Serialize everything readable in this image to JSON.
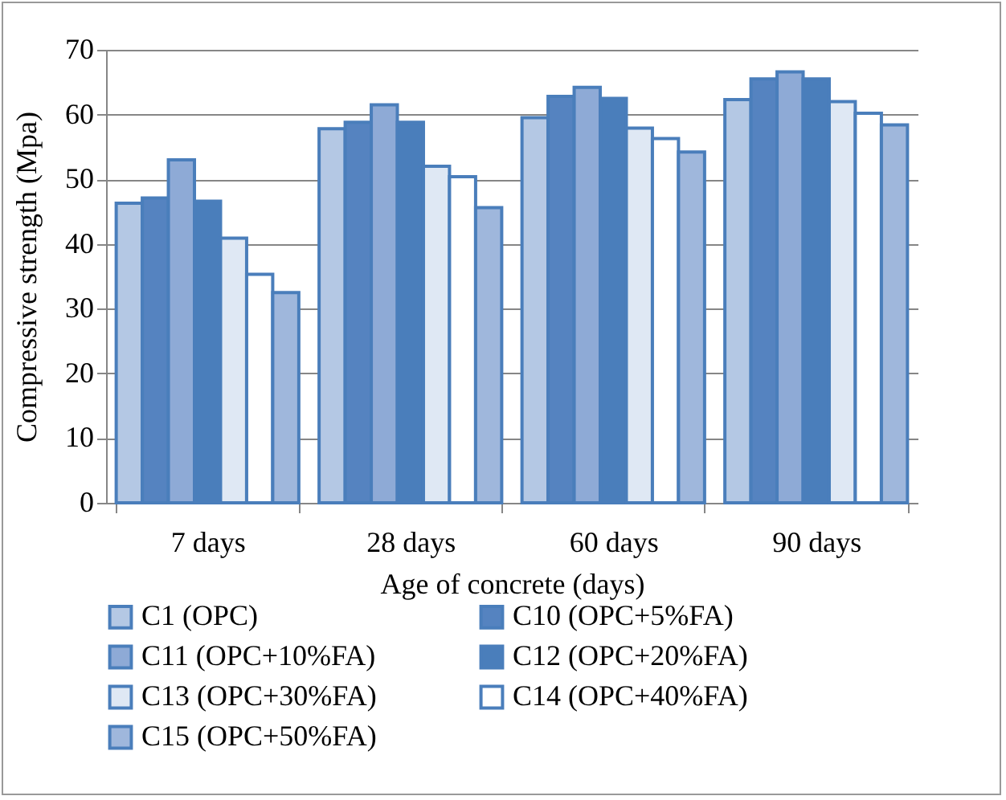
{
  "chart_data": {
    "type": "bar",
    "xlabel": "Age of concrete (days)",
    "ylabel": "Compressive strength (Mpa)",
    "categories": [
      "7 days",
      "28 days",
      "60 days",
      "90 days"
    ],
    "series": [
      {
        "name": "C1 (OPC)",
        "color": "#b4c8e4",
        "values": [
          46.3,
          57.8,
          59.5,
          62.3
        ]
      },
      {
        "name": "C10 (OPC+5%FA)",
        "color": "#5583c0",
        "values": [
          47.1,
          58.8,
          62.8,
          65.5
        ]
      },
      {
        "name": "C11 (OPC+10%FA)",
        "color": "#8eaad6",
        "values": [
          53.0,
          61.5,
          64.2,
          66.6
        ]
      },
      {
        "name": "C12 (OPC+20%FA)",
        "color": "#4a7ebb",
        "values": [
          46.6,
          58.8,
          62.5,
          65.5
        ]
      },
      {
        "name": "C13 (OPC+30%FA)",
        "color": "#dfe8f4",
        "values": [
          40.9,
          52.0,
          57.9,
          62.0
        ]
      },
      {
        "name": "C14 (OPC+40%FA)",
        "color": "#ffffff",
        "values": [
          35.3,
          50.4,
          56.3,
          60.2
        ]
      },
      {
        "name": "C15 (OPC+50%FA)",
        "color": "#9fb7dc",
        "values": [
          32.5,
          45.6,
          54.2,
          58.4
        ]
      }
    ],
    "ylim": [
      0,
      70
    ],
    "yticks": [
      0,
      10,
      20,
      30,
      40,
      50,
      60,
      70
    ],
    "grid": "y",
    "legend": "bottom"
  }
}
